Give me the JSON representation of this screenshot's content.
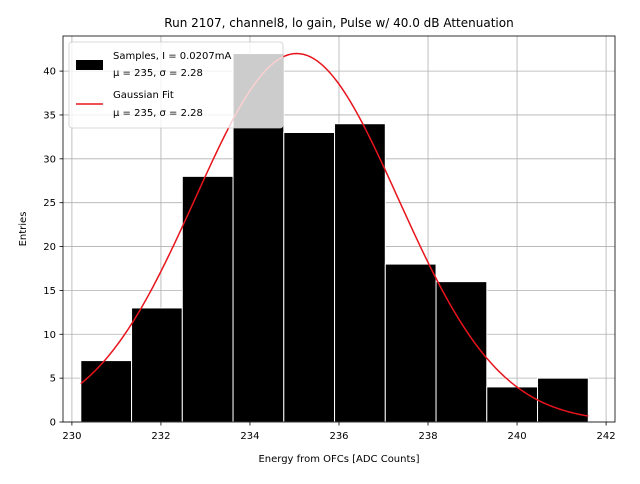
{
  "chart_data": {
    "type": "bar",
    "title": "Run 2107, channel8, lo gain, Pulse w/ 40.0 dB Attenuation",
    "xlabel": "Energy from OFCs [ADC Counts]",
    "ylabel": "Entries",
    "xlim": [
      229.8,
      242.2
    ],
    "ylim": [
      0,
      44
    ],
    "grid": true,
    "legend_position": "top-left",
    "xticks": [
      230,
      232,
      234,
      236,
      238,
      240,
      242
    ],
    "xtick_labels": [
      "230",
      "232",
      "234",
      "236",
      "238",
      "240",
      "242"
    ],
    "yticks": [
      0,
      5,
      10,
      15,
      20,
      25,
      30,
      35,
      40
    ],
    "ytick_labels": [
      "0",
      "5",
      "10",
      "15",
      "20",
      "25",
      "30",
      "35",
      "40"
    ],
    "bin_edges": [
      230.2,
      231.34,
      232.48,
      233.62,
      234.76,
      235.9,
      237.04,
      238.18,
      239.32,
      240.46,
      241.6
    ],
    "counts": [
      7,
      13,
      28,
      42,
      33,
      34,
      18,
      16,
      4,
      5
    ],
    "series": [
      {
        "name": "Samples, I = 0.0207mA",
        "name_line2": "μ = 235, σ = 2.28",
        "kind": "histogram",
        "color": "#000000"
      },
      {
        "name": "Gaussian Fit",
        "name_line2": "μ = 235, σ = 2.28",
        "kind": "line",
        "color": "#e8141c",
        "fit": {
          "mu": 235.05,
          "sigma": 2.28,
          "amplitude": 42,
          "x_start": 230.2,
          "x_end": 241.6
        }
      }
    ]
  }
}
